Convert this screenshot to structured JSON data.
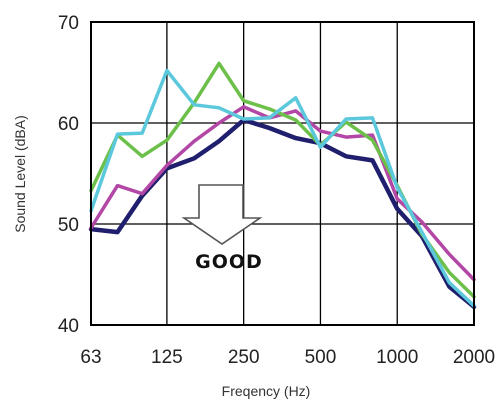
{
  "chart_data": {
    "type": "line",
    "title": "",
    "xlabel": "Freqency (Hz)",
    "ylabel": "Sound Level (dBA)",
    "x": [
      63,
      80,
      100,
      125,
      160,
      200,
      250,
      315,
      400,
      500,
      630,
      800,
      1000,
      1250,
      1600,
      2000
    ],
    "x_scale": "log",
    "x_ticks": [
      "63",
      "125",
      "250",
      "500",
      "1000",
      "2000"
    ],
    "y_ticks": [
      "40",
      "50",
      "60",
      "70"
    ],
    "ylim": [
      40,
      70
    ],
    "grid": true,
    "legend": "none",
    "series": [
      {
        "color": "#1f1f6e",
        "values": [
          49.5,
          49.2,
          52.8,
          55.5,
          56.5,
          58.2,
          60.3,
          59.5,
          58.5,
          58.0,
          56.7,
          56.3,
          51.5,
          48.8,
          43.8,
          41.8
        ]
      },
      {
        "color": "#b347a6",
        "values": [
          49.6,
          53.8,
          53.0,
          55.8,
          58.2,
          60.0,
          61.6,
          60.5,
          61.2,
          59.2,
          58.6,
          58.8,
          52.5,
          50.2,
          47.0,
          44.5
        ]
      },
      {
        "color": "#6cc04a",
        "values": [
          53.3,
          58.8,
          56.7,
          58.3,
          62.0,
          65.9,
          62.2,
          61.4,
          60.3,
          57.8,
          60.1,
          58.3,
          53.8,
          49.0,
          45.2,
          42.8
        ]
      },
      {
        "color": "#5bc8dc",
        "values": [
          51.3,
          58.9,
          59.0,
          65.2,
          61.8,
          61.5,
          60.4,
          60.5,
          62.5,
          57.6,
          60.4,
          60.5,
          53.6,
          49.2,
          44.2,
          41.9
        ]
      }
    ],
    "annotations": [
      {
        "text": "GOOD",
        "arrow": "down",
        "color": "#111111"
      }
    ]
  }
}
